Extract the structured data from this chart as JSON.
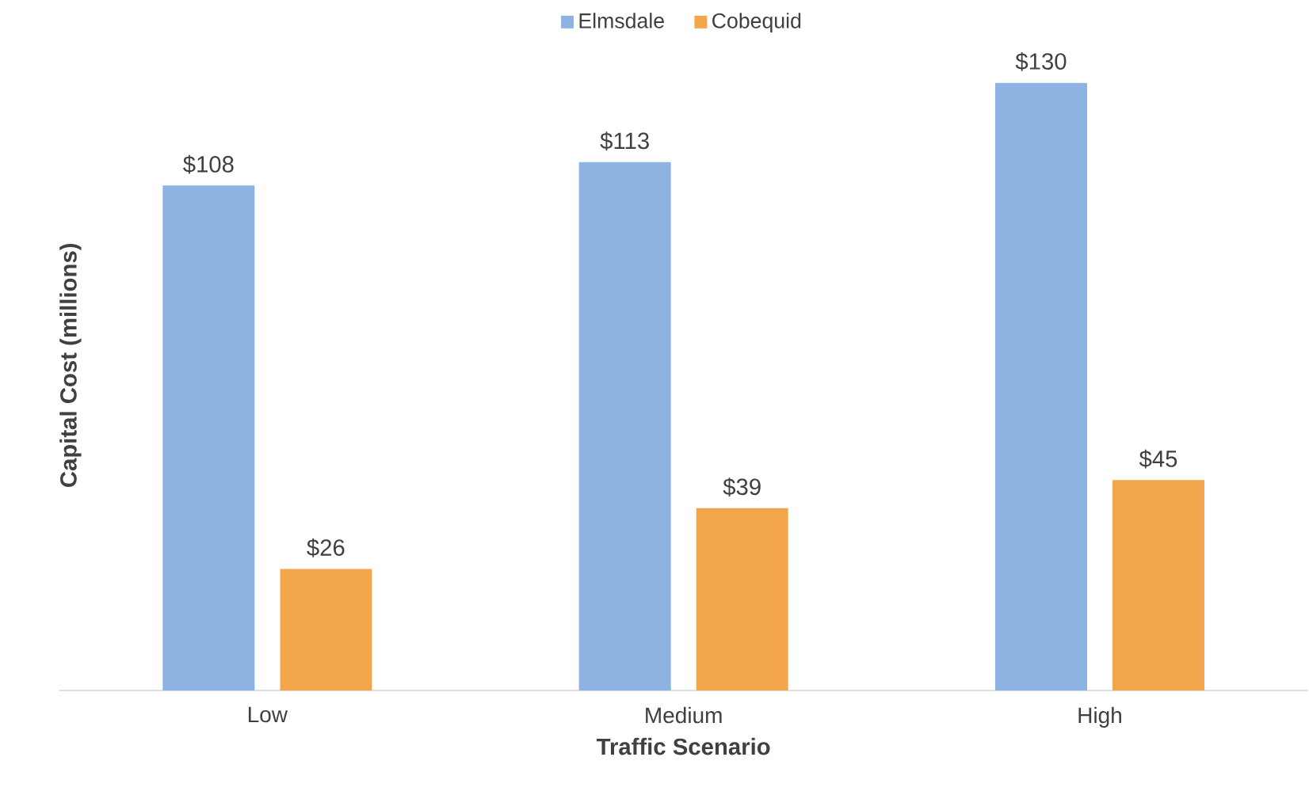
{
  "chart_data": {
    "type": "bar",
    "xlabel": "Traffic Scenario",
    "ylabel": "Capital Cost (millions)",
    "categories": [
      "Low",
      "Medium",
      "High"
    ],
    "series": [
      {
        "name": "Elmsdale",
        "color": "#8db3e2",
        "values": [
          108,
          113,
          130
        ],
        "value_labels": [
          "$108",
          "$113",
          "$130"
        ]
      },
      {
        "name": "Cobequid",
        "color": "#f2a54a",
        "values": [
          26,
          39,
          45
        ],
        "value_labels": [
          "$26",
          "$39",
          "$45"
        ]
      }
    ],
    "legend": "top",
    "tick_labels": "x"
  }
}
